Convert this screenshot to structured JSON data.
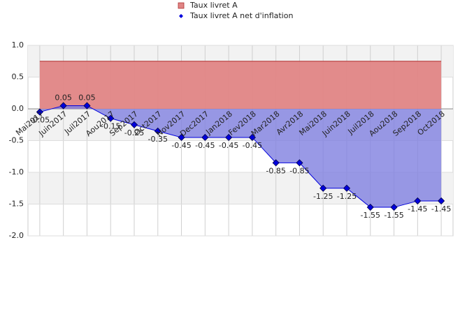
{
  "chart_data": {
    "type": "area",
    "categories": [
      "Mai2017",
      "Juin2017",
      "Juil2017",
      "Aou2017",
      "Sep2017",
      "Oct2017",
      "Nov2017",
      "Dec2017",
      "Jan2018",
      "Fev2018",
      "Mar2018",
      "Avr2018",
      "Mai2018",
      "Juin2018",
      "Juil2018",
      "Aou2018",
      "Sep2018",
      "Oct2018"
    ],
    "series": [
      {
        "name": "Taux livret A",
        "color": "#e08585",
        "line_color": "#b03030",
        "values": [
          0.75,
          0.75,
          0.75,
          0.75,
          0.75,
          0.75,
          0.75,
          0.75,
          0.75,
          0.75,
          0.75,
          0.75,
          0.75,
          0.75,
          0.75,
          0.75,
          0.75,
          0.75
        ]
      },
      {
        "name": "Taux livret A net d'inflation",
        "color": "#8080e0",
        "line_color": "#0000dd",
        "values": [
          -0.05,
          0.05,
          0.05,
          -0.15,
          -0.25,
          -0.35,
          -0.45,
          -0.45,
          -0.45,
          -0.45,
          -0.85,
          -0.85,
          -1.25,
          -1.25,
          -1.55,
          -1.55,
          -1.45,
          -1.45
        ],
        "value_labels": [
          "-0.05",
          "0.05",
          "0.05",
          "-0.15",
          "-0.25",
          "-0.35",
          "-0.45",
          "-0.45",
          "-0.45",
          "-0.45",
          "-0.85",
          "-0.85",
          "-1.25",
          "-1.25",
          "-1.55",
          "-1.55",
          "-1.45",
          "-1.45"
        ]
      }
    ],
    "ylim": [
      -2,
      1
    ],
    "yticks": [
      {
        "value": 1,
        "label": "1.0"
      },
      0.5,
      {
        "value": 0,
        "label": "0.0"
      },
      -0.5,
      {
        "value": -1,
        "label": "-1.0"
      },
      -1.5,
      {
        "value": -2,
        "label": "-2.0"
      }
    ],
    "grid": true
  }
}
